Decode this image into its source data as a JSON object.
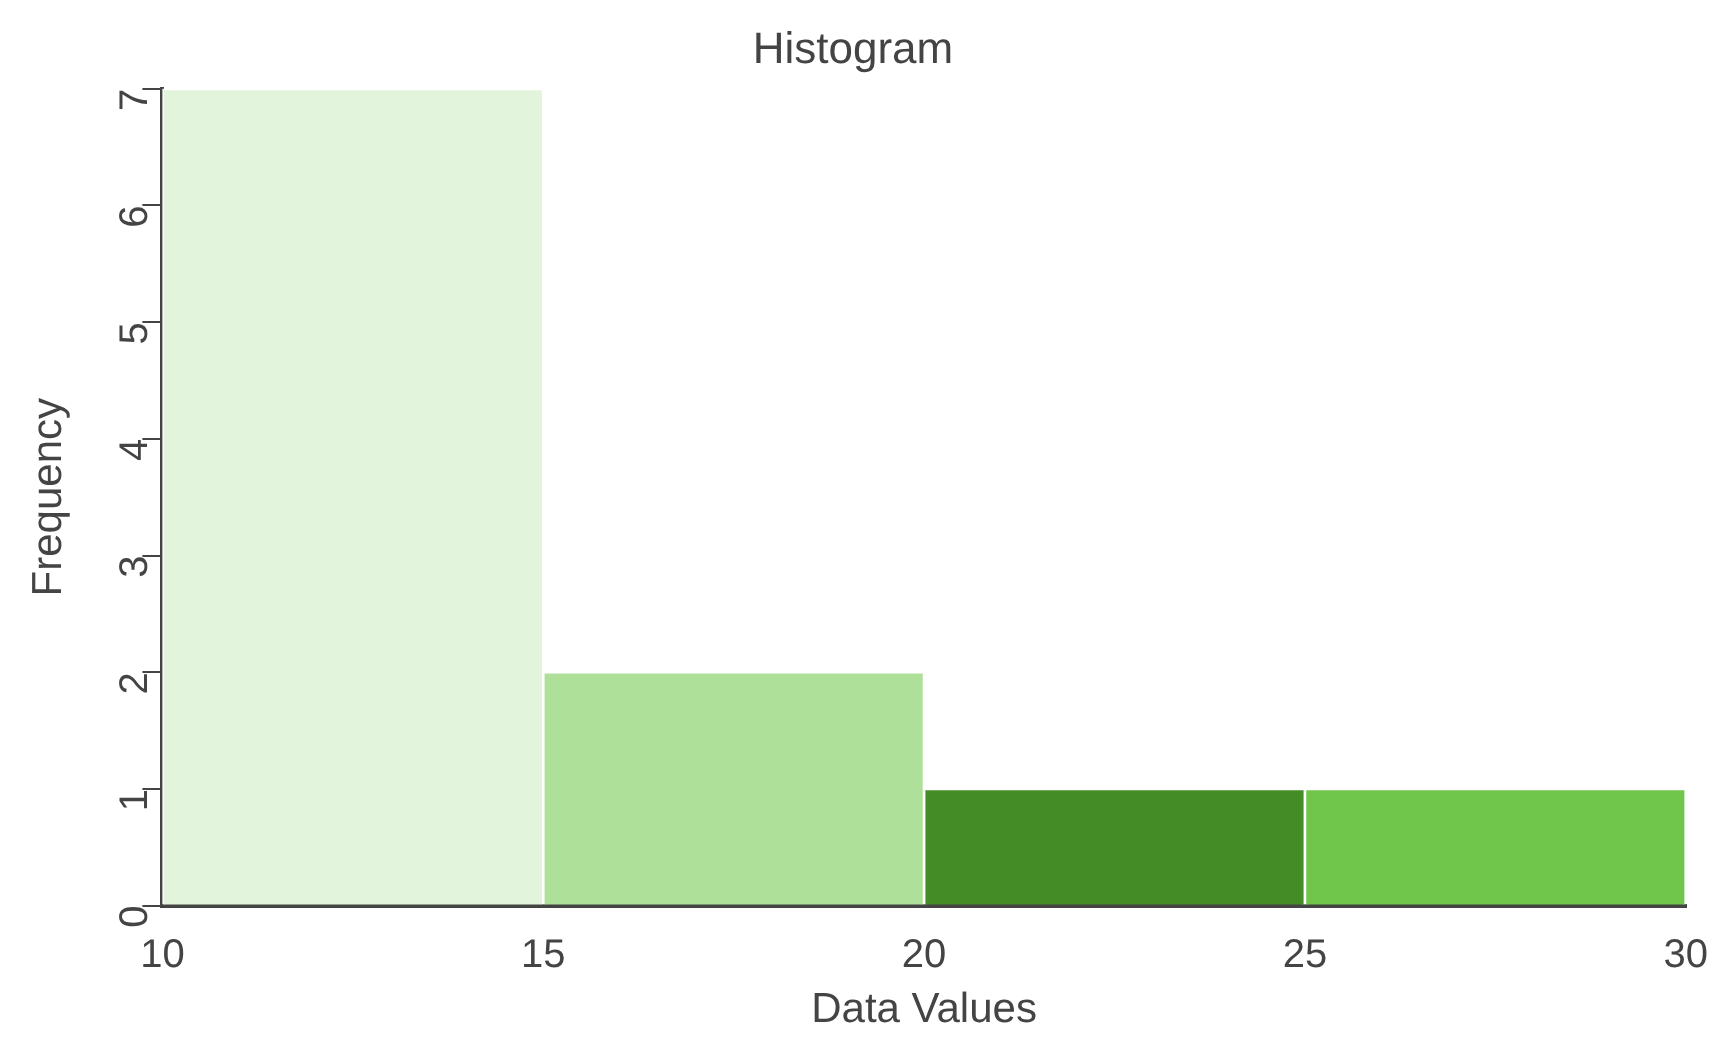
{
  "chart_data": {
    "type": "histogram",
    "title": "Histogram",
    "xlabel": "Data Values",
    "ylabel": "Frequency",
    "bins": [
      10,
      15,
      20,
      25,
      30
    ],
    "values": [
      7,
      2,
      1,
      1
    ],
    "colors": [
      "#e2f5dc",
      "#aee09a",
      "#448c26",
      "#6fc64b"
    ],
    "xlim": [
      10,
      30
    ],
    "xticks": [
      10,
      15,
      20,
      25,
      30
    ],
    "ylim": [
      0,
      7
    ],
    "yticks": [
      0,
      1,
      2,
      3,
      4,
      5,
      6,
      7
    ],
    "grid": false,
    "legend": false
  }
}
